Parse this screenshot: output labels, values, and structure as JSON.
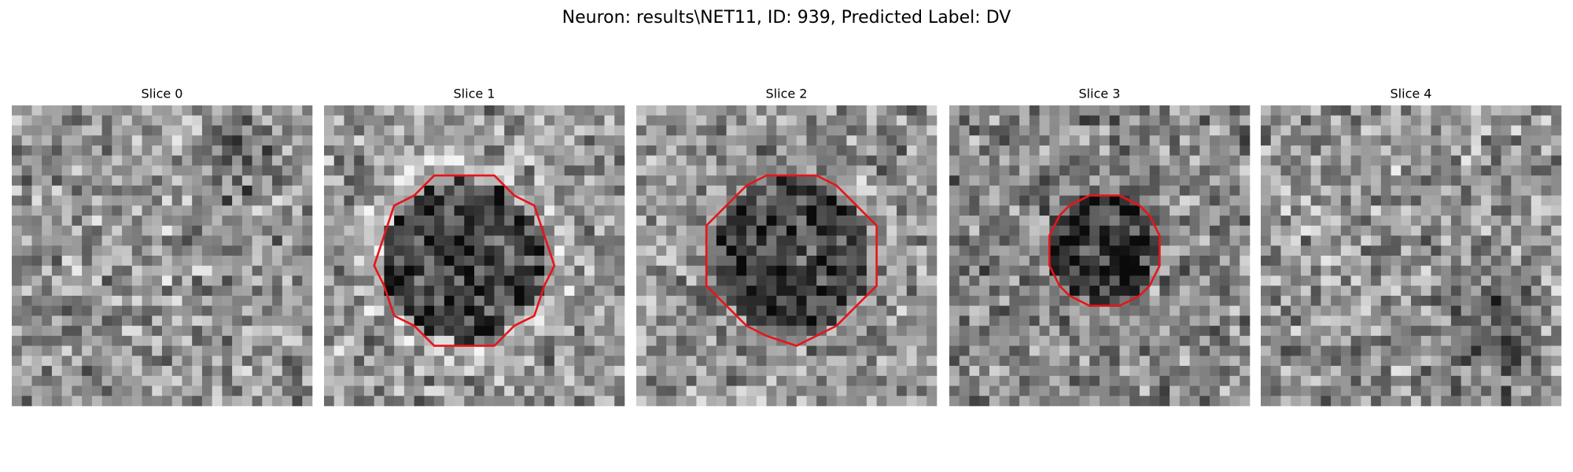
{
  "title": "Neuron: results\\NET11, ID: 939, Predicted Label: DV",
  "panels": [
    {
      "title": "Slice 0"
    },
    {
      "title": "Slice 1"
    },
    {
      "title": "Slice 2"
    },
    {
      "title": "Slice 3"
    },
    {
      "title": "Slice 4"
    }
  ]
}
